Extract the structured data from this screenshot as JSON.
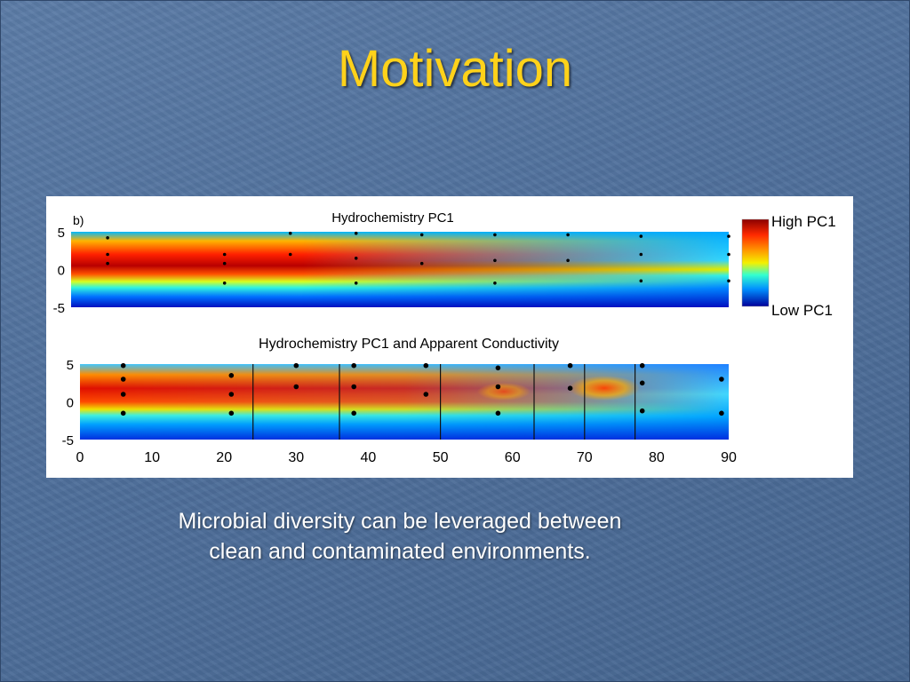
{
  "slide": {
    "title": "Motivation",
    "caption_lines": [
      "Microbial diversity can be leveraged between",
      "clean and contaminated environments."
    ]
  },
  "colors": {
    "title": "#ffd21a",
    "background": "#4f6f9b",
    "figure_background": "#ffffff"
  },
  "chart_data": [
    {
      "type": "heatmap",
      "panel_label": "b)",
      "title": "Hydrochemistry PC1",
      "x_range": [
        0,
        90
      ],
      "y_range": [
        -5,
        5
      ],
      "y_ticks": [
        5,
        0,
        -5
      ],
      "colorbar": {
        "high_label": "High PC1",
        "low_label": "Low PC1"
      },
      "sample_points": [
        [
          5,
          4.2
        ],
        [
          5,
          2.0
        ],
        [
          5,
          0.8
        ],
        [
          21,
          2.0
        ],
        [
          21,
          0.8
        ],
        [
          21,
          -1.8
        ],
        [
          30,
          4.8
        ],
        [
          30,
          2.0
        ],
        [
          39,
          4.8
        ],
        [
          39,
          1.5
        ],
        [
          39,
          -1.8
        ],
        [
          48,
          4.6
        ],
        [
          48,
          0.8
        ],
        [
          58,
          4.6
        ],
        [
          58,
          1.2
        ],
        [
          58,
          -1.8
        ],
        [
          68,
          4.6
        ],
        [
          68,
          1.2
        ],
        [
          78,
          4.4
        ],
        [
          78,
          2.0
        ],
        [
          78,
          -1.5
        ],
        [
          90,
          4.4
        ],
        [
          90,
          2.0
        ],
        [
          90,
          -1.5
        ]
      ]
    },
    {
      "type": "heatmap",
      "title": "Hydrochemistry PC1 and Apparent Conductivity",
      "x_range": [
        0,
        90
      ],
      "y_range": [
        -5,
        5
      ],
      "x_ticks": [
        0,
        10,
        20,
        30,
        40,
        50,
        60,
        70,
        80,
        90
      ],
      "y_ticks": [
        5,
        0,
        -5
      ],
      "vertical_lines_x": [
        24,
        36,
        50,
        63,
        70,
        77
      ],
      "sample_points": [
        [
          6,
          4.8
        ],
        [
          6,
          3.0
        ],
        [
          6,
          1.0
        ],
        [
          6,
          -1.5
        ],
        [
          21,
          3.5
        ],
        [
          21,
          1.0
        ],
        [
          21,
          -1.5
        ],
        [
          30,
          4.8
        ],
        [
          30,
          2.0
        ],
        [
          38,
          4.8
        ],
        [
          38,
          2.0
        ],
        [
          38,
          -1.5
        ],
        [
          48,
          4.8
        ],
        [
          48,
          1.0
        ],
        [
          58,
          4.5
        ],
        [
          58,
          2.0
        ],
        [
          58,
          -1.5
        ],
        [
          68,
          4.8
        ],
        [
          68,
          1.8
        ],
        [
          78,
          4.8
        ],
        [
          78,
          2.5
        ],
        [
          78,
          -1.2
        ],
        [
          89,
          3.0
        ],
        [
          89,
          -1.5
        ]
      ]
    }
  ]
}
